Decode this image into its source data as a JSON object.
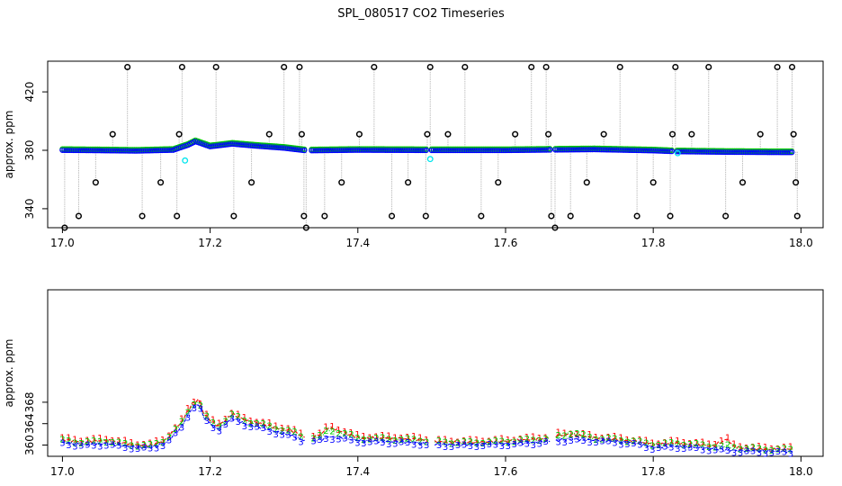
{
  "title": "SPL_080517  CO2 Timeseries",
  "colors": {
    "series1": "#ff0000",
    "series2": "#00cd00",
    "series3": "#0000ff",
    "outlier": "#000000",
    "flag": "#00e5ee",
    "needle": "#bebebe"
  },
  "chart_data": [
    {
      "type": "scatter",
      "ylabel": "approx. ppm",
      "xlim": [
        16.98,
        18.03
      ],
      "ylim": [
        327,
        441
      ],
      "xticks": [
        "17.0",
        "17.2",
        "17.4",
        "17.6",
        "17.8",
        "18.0"
      ],
      "yticks": [
        "340",
        "380",
        "420"
      ],
      "description_series": [
        {
          "name": "",
          "values": [
            [
              17.0,
              380.5
            ],
            [
              17.05,
              380.3
            ],
            [
              17.1,
              380.0
            ],
            [
              17.15,
              380.6
            ],
            [
              17.17,
              384.0
            ],
            [
              17.18,
              386.5
            ],
            [
              17.2,
              383.0
            ],
            [
              17.23,
              384.8
            ],
            [
              17.26,
              383.5
            ],
            [
              17.3,
              382.0
            ],
            [
              17.33,
              380.2
            ],
            [
              17.4,
              380.6
            ],
            [
              17.5,
              380.4
            ],
            [
              17.6,
              380.4
            ],
            [
              17.68,
              380.8
            ],
            [
              17.72,
              381.0
            ],
            [
              17.8,
              380.2
            ],
            [
              17.83,
              379.6
            ],
            [
              17.9,
              379.2
            ],
            [
              17.98,
              379.0
            ]
          ]
        }
      ],
      "outliers": [
        [
          17.003,
          327
        ],
        [
          17.022,
          335
        ],
        [
          17.045,
          358
        ],
        [
          17.068,
          391
        ],
        [
          17.088,
          437
        ],
        [
          17.108,
          335
        ],
        [
          17.133,
          358
        ],
        [
          17.155,
          335
        ],
        [
          17.158,
          391
        ],
        [
          17.162,
          437
        ],
        [
          17.208,
          437
        ],
        [
          17.232,
          335
        ],
        [
          17.256,
          358
        ],
        [
          17.28,
          391
        ],
        [
          17.3,
          437
        ],
        [
          17.321,
          437
        ],
        [
          17.324,
          391
        ],
        [
          17.327,
          335
        ],
        [
          17.33,
          327
        ],
        [
          17.355,
          335
        ],
        [
          17.378,
          358
        ],
        [
          17.402,
          391
        ],
        [
          17.422,
          437
        ],
        [
          17.446,
          335
        ],
        [
          17.468,
          358
        ],
        [
          17.492,
          335
        ],
        [
          17.494,
          391
        ],
        [
          17.498,
          437
        ],
        [
          17.522,
          391
        ],
        [
          17.545,
          437
        ],
        [
          17.567,
          335
        ],
        [
          17.59,
          358
        ],
        [
          17.613,
          391
        ],
        [
          17.635,
          437
        ],
        [
          17.655,
          437
        ],
        [
          17.658,
          391
        ],
        [
          17.662,
          335
        ],
        [
          17.667,
          327
        ],
        [
          17.688,
          335
        ],
        [
          17.71,
          358
        ],
        [
          17.733,
          391
        ],
        [
          17.755,
          437
        ],
        [
          17.778,
          335
        ],
        [
          17.8,
          358
        ],
        [
          17.823,
          335
        ],
        [
          17.826,
          391
        ],
        [
          17.83,
          437
        ],
        [
          17.852,
          391
        ],
        [
          17.875,
          437
        ],
        [
          17.898,
          335
        ],
        [
          17.921,
          358
        ],
        [
          17.945,
          391
        ],
        [
          17.968,
          437
        ],
        [
          17.988,
          437
        ],
        [
          17.99,
          391
        ],
        [
          17.993,
          358
        ],
        [
          17.995,
          335
        ]
      ],
      "flags": [
        [
          17.166,
          373
        ],
        [
          17.498,
          374
        ],
        [
          17.833,
          378
        ]
      ]
    },
    {
      "type": "line",
      "ylabel": "approx. ppm",
      "xlim": [
        16.98,
        18.03
      ],
      "ylim": [
        357.9,
        389.0
      ],
      "xticks": [
        "17.0",
        "17.2",
        "17.4",
        "17.6",
        "17.8",
        "18.0"
      ],
      "yticks": [
        "360",
        "364",
        "368"
      ],
      "markers": [
        "1",
        "2",
        "3"
      ],
      "series": [
        {
          "name": "1",
          "values": [
            [
              17.0,
              361.0
            ],
            [
              17.03,
              360.6
            ],
            [
              17.06,
              360.9
            ],
            [
              17.08,
              360.4
            ],
            [
              17.1,
              360.0
            ],
            [
              17.12,
              359.9
            ],
            [
              17.14,
              361.0
            ],
            [
              17.16,
              364.0
            ],
            [
              17.175,
              367.6
            ],
            [
              17.185,
              368.6
            ],
            [
              17.19,
              366.0
            ],
            [
              17.21,
              363.5
            ],
            [
              17.23,
              365.8
            ],
            [
              17.25,
              364.5
            ],
            [
              17.27,
              364.0
            ],
            [
              17.29,
              363.2
            ],
            [
              17.31,
              362.8
            ],
            [
              17.33,
              361.2
            ],
            [
              17.35,
              362.0
            ],
            [
              17.36,
              363.3
            ],
            [
              17.38,
              362.5
            ],
            [
              17.4,
              361.4
            ],
            [
              17.43,
              361.3
            ],
            [
              17.46,
              361.2
            ],
            [
              17.49,
              361.0
            ],
            [
              17.5,
              360.6
            ],
            [
              17.55,
              360.5
            ],
            [
              17.6,
              360.7
            ],
            [
              17.65,
              361.2
            ],
            [
              17.67,
              361.8
            ],
            [
              17.69,
              362.0
            ],
            [
              17.72,
              361.3
            ],
            [
              17.75,
              361.1
            ],
            [
              17.78,
              360.6
            ],
            [
              17.8,
              360.1
            ],
            [
              17.83,
              360.4
            ],
            [
              17.86,
              360.1
            ],
            [
              17.88,
              359.8
            ],
            [
              17.9,
              361.1
            ],
            [
              17.91,
              359.6
            ],
            [
              17.94,
              359.3
            ],
            [
              17.96,
              359.2
            ],
            [
              17.99,
              359.2
            ]
          ]
        },
        {
          "name": "2",
          "values": [
            [
              17.0,
              360.8
            ],
            [
              17.03,
              360.4
            ],
            [
              17.06,
              360.7
            ],
            [
              17.08,
              360.2
            ],
            [
              17.1,
              359.9
            ],
            [
              17.12,
              359.8
            ],
            [
              17.14,
              360.9
            ],
            [
              17.16,
              363.8
            ],
            [
              17.175,
              367.4
            ],
            [
              17.185,
              368.3
            ],
            [
              17.19,
              365.8
            ],
            [
              17.21,
              363.3
            ],
            [
              17.23,
              365.6
            ],
            [
              17.25,
              364.3
            ],
            [
              17.27,
              363.8
            ],
            [
              17.29,
              363.0
            ],
            [
              17.31,
              362.5
            ],
            [
              17.33,
              361.0
            ],
            [
              17.35,
              361.6
            ],
            [
              17.36,
              362.8
            ],
            [
              17.38,
              362.2
            ],
            [
              17.4,
              361.2
            ],
            [
              17.43,
              361.1
            ],
            [
              17.46,
              361.0
            ],
            [
              17.49,
              360.8
            ],
            [
              17.5,
              360.5
            ],
            [
              17.55,
              360.4
            ],
            [
              17.6,
              360.6
            ],
            [
              17.65,
              361.0
            ],
            [
              17.67,
              361.6
            ],
            [
              17.69,
              362.2
            ],
            [
              17.72,
              361.2
            ],
            [
              17.75,
              361.0
            ],
            [
              17.78,
              360.5
            ],
            [
              17.8,
              360.0
            ],
            [
              17.83,
              360.3
            ],
            [
              17.86,
              360.0
            ],
            [
              17.88,
              359.7
            ],
            [
              17.9,
              359.8
            ],
            [
              17.91,
              359.5
            ],
            [
              17.94,
              359.2
            ],
            [
              17.96,
              359.1
            ],
            [
              17.99,
              359.1
            ]
          ]
        },
        {
          "name": "3",
          "values": [
            [
              17.0,
              360.5
            ],
            [
              17.03,
              360.0
            ],
            [
              17.06,
              360.3
            ],
            [
              17.08,
              359.9
            ],
            [
              17.1,
              359.6
            ],
            [
              17.12,
              359.5
            ],
            [
              17.14,
              360.4
            ],
            [
              17.16,
              363.2
            ],
            [
              17.175,
              366.8
            ],
            [
              17.185,
              367.8
            ],
            [
              17.19,
              365.3
            ],
            [
              17.21,
              362.8
            ],
            [
              17.23,
              365.0
            ],
            [
              17.25,
              363.8
            ],
            [
              17.27,
              363.3
            ],
            [
              17.29,
              362.4
            ],
            [
              17.31,
              361.8
            ],
            [
              17.33,
              360.6
            ],
            [
              17.35,
              361.0
            ],
            [
              17.36,
              361.6
            ],
            [
              17.38,
              361.3
            ],
            [
              17.4,
              360.8
            ],
            [
              17.43,
              360.7
            ],
            [
              17.46,
              360.6
            ],
            [
              17.49,
              360.3
            ],
            [
              17.5,
              360.1
            ],
            [
              17.55,
              360.1
            ],
            [
              17.6,
              360.2
            ],
            [
              17.65,
              360.6
            ],
            [
              17.67,
              360.9
            ],
            [
              17.69,
              361.1
            ],
            [
              17.72,
              360.9
            ],
            [
              17.75,
              360.7
            ],
            [
              17.78,
              360.2
            ],
            [
              17.8,
              359.6
            ],
            [
              17.83,
              359.8
            ],
            [
              17.86,
              359.5
            ],
            [
              17.88,
              359.3
            ],
            [
              17.9,
              359.1
            ],
            [
              17.91,
              359.0
            ],
            [
              17.94,
              358.9
            ],
            [
              17.96,
              358.8
            ],
            [
              17.99,
              358.8
            ]
          ]
        }
      ]
    }
  ]
}
